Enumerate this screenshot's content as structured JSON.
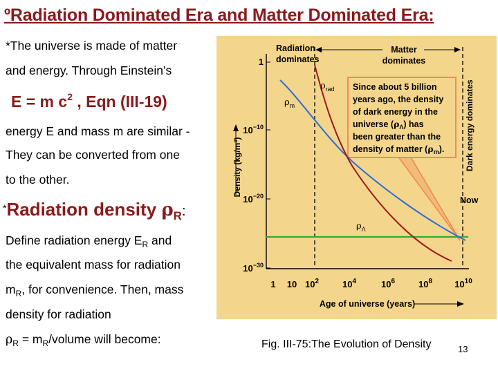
{
  "title": "ºRadiation Dominated Era and Matter Dominated Era:",
  "body": {
    "line1": "*The universe is made of matter",
    "line2": "and  energy. Through Einstein’s",
    "eqn_pre": "E = m c",
    "eqn_exp": "2",
    "eqn_post": " ,  Eqn (III-19)",
    "line3": "energy E and mass m are similar -",
    "line4": "They can be converted from one",
    "line5": "to the other.",
    "rad_star": "*",
    "rad_label": "Radiation density ",
    "rad_sym": "ρ",
    "rad_sub": "R",
    "rad_colon": ":",
    "line6_pre": "Define radiation  energy E",
    "line6_sub": "R",
    "line6_post": " and",
    "line7": "the equivalent mass  for radiation",
    "line8_pre": "m",
    "line8_sub": "R",
    "line8_post": ", for convenience. Then,  mass",
    "line9": "density for radiation",
    "line10_sym": "ρ",
    "line10_sub1": "R",
    "line10_mid": " = m",
    "line10_sub2": "R",
    "line10_post": "/volume will become:"
  },
  "figure": {
    "caption": "Fig. III-75:The Evolution of Density",
    "page_number": "13",
    "colors": {
      "background": "#f4d58c",
      "radiation": "#a01a1a",
      "matter": "#2a6ed6",
      "dark_energy": "#3aa832",
      "callout": "#ee8c55"
    },
    "header_radiation": [
      "Radiation",
      "dominates"
    ],
    "header_matter": [
      "Matter",
      "dominates"
    ],
    "dark_energy_label": "Dark energy dominates",
    "ylabel": "Density (kg/m³)",
    "xlabel": "Age of universe (years)",
    "y_ticks": [
      {
        "base": "1",
        "exp": ""
      },
      {
        "base": "10",
        "exp": "−10"
      },
      {
        "base": "10",
        "exp": "−20"
      },
      {
        "base": "10",
        "exp": "−30"
      }
    ],
    "x_ticks": [
      {
        "base": "1",
        "exp": ""
      },
      {
        "base": "10",
        "exp": ""
      },
      {
        "base": "10",
        "exp": "2"
      },
      {
        "base": "10",
        "exp": "4"
      },
      {
        "base": "10",
        "exp": "6"
      },
      {
        "base": "10",
        "exp": "8"
      },
      {
        "base": "10",
        "exp": "10"
      }
    ],
    "rho_rad": {
      "sym": "ρ",
      "sub": "rad"
    },
    "rho_m": {
      "sym": "ρ",
      "sub": "m"
    },
    "rho_lambda": {
      "sym": "ρ",
      "sub": "Λ"
    },
    "now_label": "Now",
    "callout": {
      "line1": "Since about 5 billion",
      "line2": "years ago, the density",
      "line3": "of dark energy in the",
      "line4_pre": "universe (",
      "line4_sym": "ρ",
      "line4_sub": "Λ",
      "line4_post": ") has",
      "line5": "been greater than the",
      "line6_pre": "density of matter (",
      "line6_sym": "ρ",
      "line6_sub": "m",
      "line6_post": ")."
    }
  }
}
